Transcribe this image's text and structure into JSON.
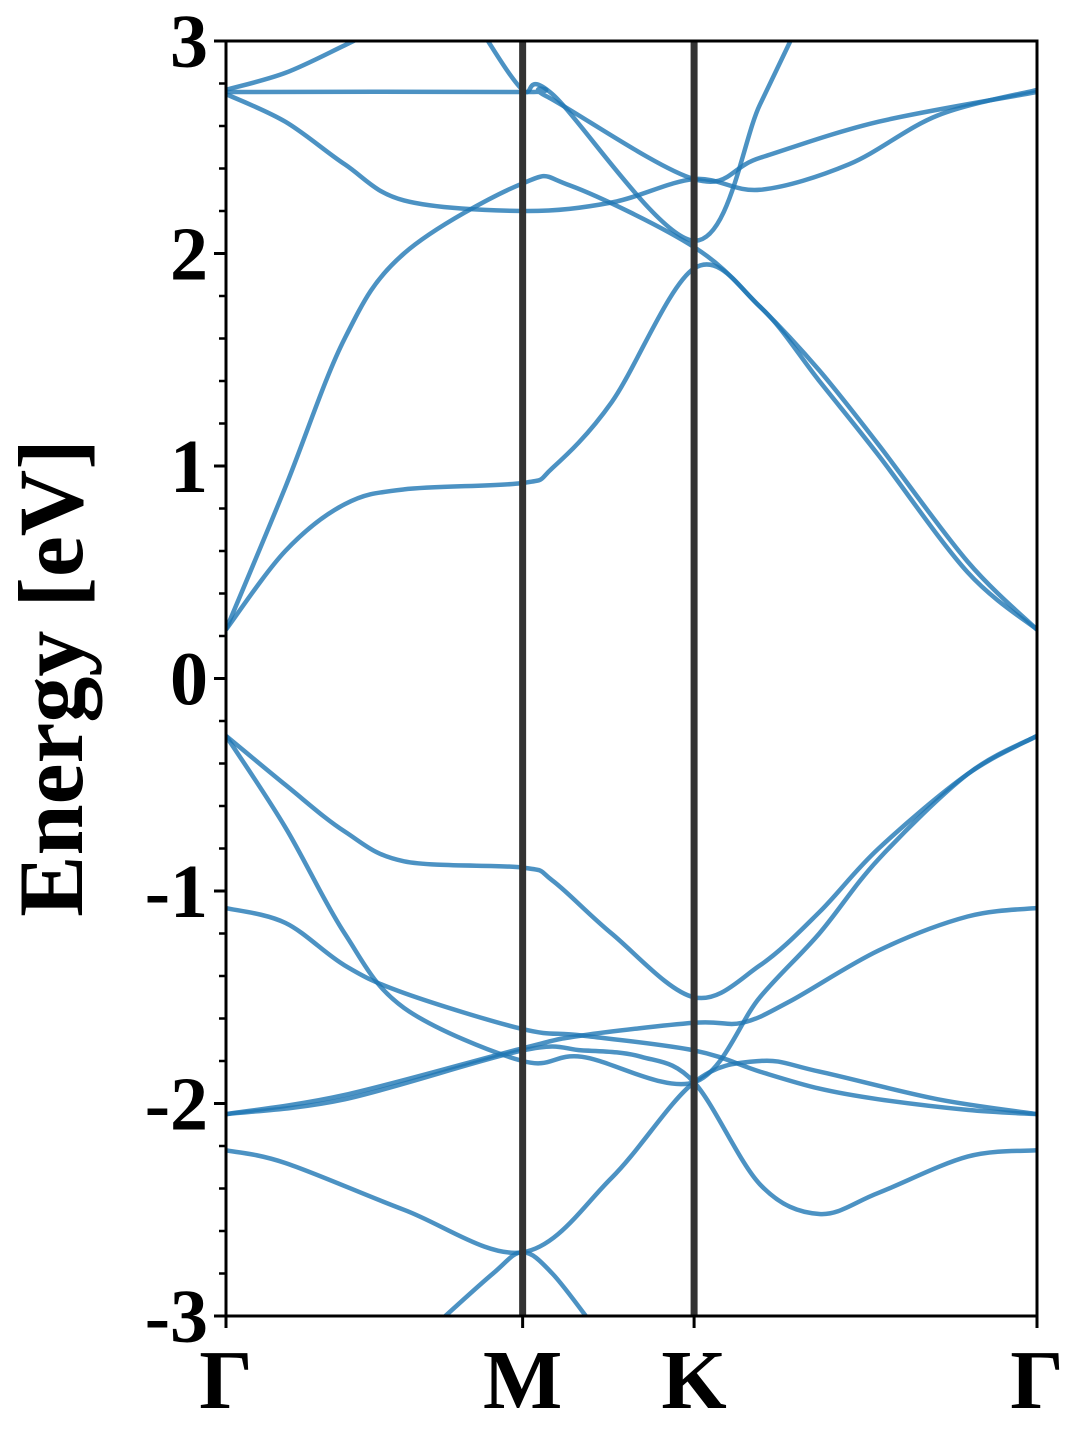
{
  "chart_data": {
    "type": "line",
    "title": "",
    "xlabel": "",
    "ylabel": "Energy [eV]",
    "ylim": [
      -3,
      3
    ],
    "yticks": [
      {
        "value": 3,
        "label": "3"
      },
      {
        "value": 2,
        "label": "2"
      },
      {
        "value": 1,
        "label": "1"
      },
      {
        "value": 0,
        "label": "0"
      },
      {
        "value": -1,
        "label": "-1"
      },
      {
        "value": -2,
        "label": "-2"
      },
      {
        "value": -3,
        "label": "-3"
      }
    ],
    "y_minor_step": 0.2,
    "xlim": [
      0,
      1.467
    ],
    "high_symmetry_points": [
      {
        "label": "Γ",
        "x": 0
      },
      {
        "label": "M",
        "x": 0.5
      },
      {
        "label": "K",
        "x": 0.789
      },
      {
        "label": "Γ",
        "x": 1.367
      }
    ],
    "grid": false,
    "colors": {
      "bands": "#1f77b4",
      "kpath_lines": "#333333",
      "axes": "#000000"
    },
    "series": [
      {
        "points": [
          [
            0,
            2.77
          ],
          [
            0.1,
            2.85
          ],
          [
            0.2,
            2.98
          ],
          [
            0.25,
            3.05
          ]
        ]
      },
      {
        "points": [
          [
            0,
            2.76
          ],
          [
            0.5,
            2.76
          ],
          [
            0.54,
            2.74
          ],
          [
            0.789,
            2.35
          ],
          [
            0.9,
            2.45
          ],
          [
            1.1,
            2.62
          ],
          [
            1.367,
            2.76
          ]
        ]
      },
      {
        "points": [
          [
            0,
            2.75
          ],
          [
            0.1,
            2.62
          ],
          [
            0.2,
            2.42
          ],
          [
            0.3,
            2.25
          ],
          [
            0.5,
            2.2
          ],
          [
            0.65,
            2.24
          ],
          [
            0.789,
            2.35
          ],
          [
            0.9,
            2.3
          ],
          [
            1.05,
            2.42
          ],
          [
            1.2,
            2.65
          ],
          [
            1.367,
            2.77
          ]
        ]
      },
      {
        "points": [
          [
            0.43,
            3.05
          ],
          [
            0.5,
            2.77
          ],
          [
            0.55,
            2.75
          ],
          [
            0.789,
            2.06
          ],
          [
            0.9,
            2.7
          ],
          [
            0.96,
            3.05
          ]
        ]
      },
      {
        "points": [
          [
            0,
            0.23
          ],
          [
            0.1,
            0.9
          ],
          [
            0.2,
            1.6
          ],
          [
            0.3,
            2.0
          ],
          [
            0.5,
            2.33
          ],
          [
            0.58,
            2.32
          ],
          [
            0.789,
            2.03
          ],
          [
            0.9,
            1.75
          ],
          [
            1.0,
            1.45
          ],
          [
            1.1,
            1.1
          ],
          [
            1.25,
            0.55
          ],
          [
            1.367,
            0.23
          ]
        ]
      },
      {
        "points": [
          [
            0,
            0.23
          ],
          [
            0.1,
            0.6
          ],
          [
            0.2,
            0.82
          ],
          [
            0.3,
            0.89
          ],
          [
            0.5,
            0.92
          ],
          [
            0.55,
            0.99
          ],
          [
            0.65,
            1.3
          ],
          [
            0.789,
            1.93
          ],
          [
            0.9,
            1.75
          ],
          [
            1.0,
            1.4
          ],
          [
            1.1,
            1.05
          ],
          [
            1.25,
            0.5
          ],
          [
            1.367,
            0.23
          ]
        ]
      },
      {
        "points": [
          [
            0,
            -0.27
          ],
          [
            0.1,
            -0.5
          ],
          [
            0.2,
            -0.72
          ],
          [
            0.3,
            -0.86
          ],
          [
            0.5,
            -0.89
          ],
          [
            0.55,
            -0.95
          ],
          [
            0.65,
            -1.2
          ],
          [
            0.789,
            -1.5
          ],
          [
            0.9,
            -1.35
          ],
          [
            1.0,
            -1.1
          ],
          [
            1.1,
            -0.8
          ],
          [
            1.25,
            -0.45
          ],
          [
            1.367,
            -0.27
          ]
        ]
      },
      {
        "points": [
          [
            0,
            -0.27
          ],
          [
            0.1,
            -0.7
          ],
          [
            0.2,
            -1.2
          ],
          [
            0.3,
            -1.55
          ],
          [
            0.5,
            -1.8
          ],
          [
            0.6,
            -1.78
          ],
          [
            0.789,
            -1.9
          ],
          [
            0.9,
            -1.5
          ],
          [
            1.0,
            -1.2
          ],
          [
            1.1,
            -0.85
          ],
          [
            1.25,
            -0.45
          ],
          [
            1.367,
            -0.27
          ]
        ]
      },
      {
        "points": [
          [
            0,
            -1.08
          ],
          [
            0.1,
            -1.15
          ],
          [
            0.2,
            -1.35
          ],
          [
            0.3,
            -1.48
          ],
          [
            0.5,
            -1.65
          ],
          [
            0.6,
            -1.68
          ],
          [
            0.789,
            -1.75
          ],
          [
            0.9,
            -1.85
          ],
          [
            1.0,
            -1.93
          ],
          [
            1.1,
            -1.98
          ],
          [
            1.25,
            -2.03
          ],
          [
            1.367,
            -2.05
          ]
        ]
      },
      {
        "points": [
          [
            0,
            -2.05
          ],
          [
            0.2,
            -1.96
          ],
          [
            0.5,
            -1.74
          ],
          [
            0.6,
            -1.68
          ],
          [
            0.789,
            -1.62
          ],
          [
            0.87,
            -1.62
          ],
          [
            0.95,
            -1.52
          ],
          [
            1.1,
            -1.28
          ],
          [
            1.25,
            -1.12
          ],
          [
            1.367,
            -1.08
          ]
        ]
      },
      {
        "points": [
          [
            0,
            -2.05
          ],
          [
            0.2,
            -1.98
          ],
          [
            0.5,
            -1.75
          ],
          [
            0.6,
            -1.75
          ],
          [
            0.7,
            -1.78
          ],
          [
            0.789,
            -1.9
          ],
          [
            0.9,
            -2.38
          ],
          [
            1.0,
            -2.52
          ],
          [
            1.1,
            -2.42
          ],
          [
            1.25,
            -2.25
          ],
          [
            1.367,
            -2.22
          ]
        ]
      },
      {
        "points": [
          [
            0,
            -2.22
          ],
          [
            0.1,
            -2.28
          ],
          [
            0.3,
            -2.5
          ],
          [
            0.5,
            -2.7
          ],
          [
            0.65,
            -2.35
          ],
          [
            0.789,
            -1.9
          ],
          [
            0.9,
            -1.8
          ],
          [
            1.0,
            -1.85
          ],
          [
            1.2,
            -1.98
          ],
          [
            1.367,
            -2.05
          ]
        ]
      },
      {
        "points": [
          [
            0.35,
            -3.05
          ],
          [
            0.45,
            -2.8
          ],
          [
            0.5,
            -2.7
          ],
          [
            0.55,
            -2.8
          ],
          [
            0.62,
            -3.05
          ]
        ]
      }
    ]
  }
}
